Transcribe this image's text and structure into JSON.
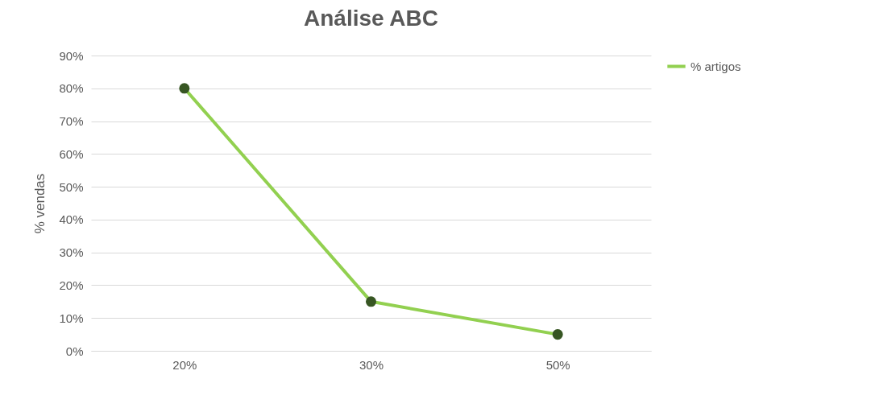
{
  "chart_data": {
    "type": "line",
    "title": "Análise ABC",
    "ylabel": "% vendas",
    "categories": [
      "20%",
      "30%",
      "50%"
    ],
    "series": [
      {
        "name": "% artigos",
        "color": "#92d050",
        "values": [
          80,
          15,
          5
        ]
      }
    ],
    "ylim": [
      0,
      90
    ],
    "yticks": [
      {
        "value": 0,
        "label": "0%"
      },
      {
        "value": 10,
        "label": "10%"
      },
      {
        "value": 20,
        "label": "20%"
      },
      {
        "value": 30,
        "label": "30%"
      },
      {
        "value": 40,
        "label": "40%"
      },
      {
        "value": 50,
        "label": "50%"
      },
      {
        "value": 60,
        "label": "60%"
      },
      {
        "value": 70,
        "label": "70%"
      },
      {
        "value": 80,
        "label": "80%"
      },
      {
        "value": 90,
        "label": "90%"
      }
    ],
    "grid": "y",
    "legend": "right",
    "marker": "circle",
    "line_style": "solid"
  }
}
